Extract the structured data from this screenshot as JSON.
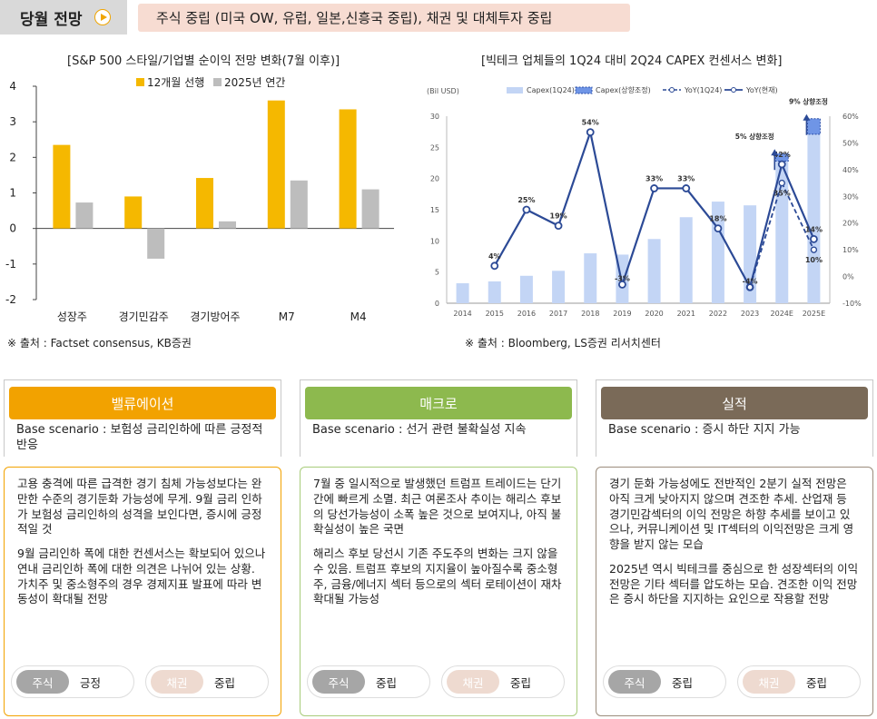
{
  "header": {
    "tab_label": "당월 전망",
    "banner": "주식 중립 (미국 OW, 유럽, 일본,신흥국  중립), 채권 및 대체투자 중립"
  },
  "chart_data": [
    {
      "type": "bar",
      "title": "[S&P 500 스타일/기업별 순이익 전망 변화(7월 이후)]",
      "categories": [
        "성장주",
        "경기민감주",
        "경기방어주",
        "M7",
        "M4"
      ],
      "series": [
        {
          "name": "12개월 선행",
          "values": [
            2.35,
            0.9,
            1.42,
            3.6,
            3.35
          ],
          "color": "#f5b800"
        },
        {
          "name": "2025년 연간",
          "values": [
            0.73,
            -0.85,
            0.2,
            1.35,
            1.1
          ],
          "color": "#bdbdbd"
        }
      ],
      "ylim": [
        -2,
        4
      ],
      "yticks": [
        "4",
        "3",
        "2",
        "1",
        "0",
        "-1",
        "-2"
      ],
      "source": "※ 출처 : Factset consensus, KB증권"
    },
    {
      "type": "bar+line",
      "title": "[빅테크 업체들의 1Q24 대비 2Q24 CAPEX 컨센서스 변화]",
      "y_left_unit": "(Bil USD)",
      "categories": [
        "2014",
        "2015",
        "2016",
        "2017",
        "2018",
        "2019",
        "2020",
        "2021",
        "2022",
        "2023",
        "2024E",
        "2025E"
      ],
      "capex_1q24": [
        3.2,
        3.5,
        4.4,
        5.2,
        8.0,
        7.8,
        10.3,
        13.8,
        16.3,
        15.7,
        22.8,
        27.1
      ],
      "capex_adj": [
        null,
        null,
        null,
        null,
        null,
        null,
        null,
        null,
        null,
        null,
        24.0,
        29.6
      ],
      "yoy_1q24_pct": [
        null,
        null,
        null,
        null,
        null,
        null,
        null,
        null,
        null,
        -4,
        35,
        10
      ],
      "yoy_now_pct": [
        null,
        4,
        25,
        19,
        54,
        -3,
        33,
        33,
        18,
        -4,
        42,
        14
      ],
      "yoy_labels": [
        "",
        "4%",
        "25%",
        "19%",
        "54%",
        "-3%",
        "33%",
        "33%",
        "18%",
        "-4%",
        "42%",
        "14%"
      ],
      "yoy_1q24_labels": [
        "",
        "",
        "",
        "",
        "",
        "",
        "",
        "",
        "",
        "",
        "35%",
        "10%"
      ],
      "legend": [
        "Capex(1Q24)",
        "Capex(상향조정)",
        "YoY(1Q24)",
        "YoY(현재)"
      ],
      "annotations": [
        "5% 상향조정",
        "9% 상향조정"
      ],
      "y_left_ticks": [
        "30",
        "25",
        "20",
        "15",
        "10",
        "5",
        "0"
      ],
      "y_right_ticks": [
        "60%",
        "50%",
        "40%",
        "30%",
        "20%",
        "10%",
        "0%",
        "-10%"
      ],
      "source": "※ 출처 : Bloomberg, LS증권 리서치센터"
    }
  ],
  "panels": [
    {
      "title": "밸류에이션",
      "color": "#f2a200",
      "scenario": "Base scenario : 보험성 금리인하에 따른 긍정적 반응",
      "paragraphs": [
        "고용 충격에 따른 급격한 경기 침체 가능성보다는 완만한 수준의 경기둔화 가능성에 무게.  9월 금리 인하가 보험성 금리인하의 성격을 보인다면, 증시에 긍정적일 것",
        "9월 금리인하 폭에 대한 컨센서스는 확보되어 있으나 연내 금리인하 폭에 대한 의견은 나뉘어 있는 상황. 가치주 및 중소형주의 경우 경제지표 발표에 따라 변동성이 확대될 전망"
      ],
      "border": "#f2a200",
      "stock_tag": "주식",
      "stock_val": "긍정",
      "bond_tag": "채권",
      "bond_val": "중립"
    },
    {
      "title": "매크로",
      "color": "#8db94e",
      "scenario": "Base scenario : 선거 관련 불확실성 지속",
      "paragraphs": [
        "7월 중 일시적으로 발생했던 트럼프 트레이드는 단기간에 빠르게 소멸. 최근 여론조사 추이는 해리스 후보의 당선가능성이 소폭 높은 것으로 보여지나, 아직 불확실성이 높은 국면",
        "해리스 후보 당선시 기존 주도주의 변화는 크지 않을 수 있음. 트럼프 후보의 지지율이 높아질수록 중소형주, 금융/에너지 섹터 등으로의 섹터 로테이션이 재차 확대될 가능성"
      ],
      "border": "#a8cc7a",
      "stock_tag": "주식",
      "stock_val": "중립",
      "bond_tag": "채권",
      "bond_val": "중립"
    },
    {
      "title": "실적",
      "color": "#7a6a58",
      "scenario": "Base scenario : 증시 하단 지지 가능",
      "paragraphs": [
        "경기 둔화 가능성에도 전반적인 2분기 실적 전망은 아직 크게 낮아지지 않으며 견조한 추세. 산업재 등 경기민감섹터의 이익 전망은 하향 추세를 보이고 있으나, 커뮤니케이션 및 IT섹터의 이익전망은 크게 영향을 받지 않는 모습",
        "2025년 역시 빅테크를 중심으로 한 성장섹터의 이익 전망은 기타 섹터를 압도하는 모습. 견조한 이익 전망은 증시 하단을 지지하는 요인으로 작용할 전망"
      ],
      "border": "#9b8c7c",
      "stock_tag": "주식",
      "stock_val": "중립",
      "bond_tag": "채권",
      "bond_val": "중립"
    }
  ]
}
